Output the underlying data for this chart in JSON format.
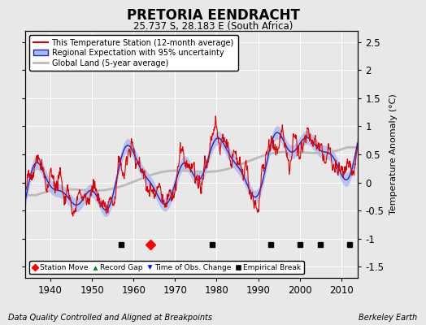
{
  "title": "PRETORIA EENDRACHT",
  "subtitle": "25.737 S, 28.183 E (South Africa)",
  "ylabel": "Temperature Anomaly (°C)",
  "footer_left": "Data Quality Controlled and Aligned at Breakpoints",
  "footer_right": "Berkeley Earth",
  "xlim": [
    1934,
    2014
  ],
  "ylim": [
    -1.7,
    2.7
  ],
  "yticks": [
    -1.5,
    -1.0,
    -0.5,
    0.0,
    0.5,
    1.0,
    1.5,
    2.0,
    2.5
  ],
  "xticks": [
    1940,
    1950,
    1960,
    1970,
    1980,
    1990,
    2000,
    2010
  ],
  "bg_color": "#e8e8e8",
  "plot_bg_color": "#e8e8e8",
  "station_color": "#dd0000",
  "regional_color": "#2222cc",
  "regional_fill_color": "#aabbee",
  "global_color": "#bbbbbb",
  "seed": 17,
  "station_moves": [
    1964
  ],
  "empirical_breaks": [
    1957,
    1979,
    1993,
    2000,
    2005,
    2012
  ],
  "record_gaps": [],
  "obs_changes": [],
  "marker_y": -1.1
}
